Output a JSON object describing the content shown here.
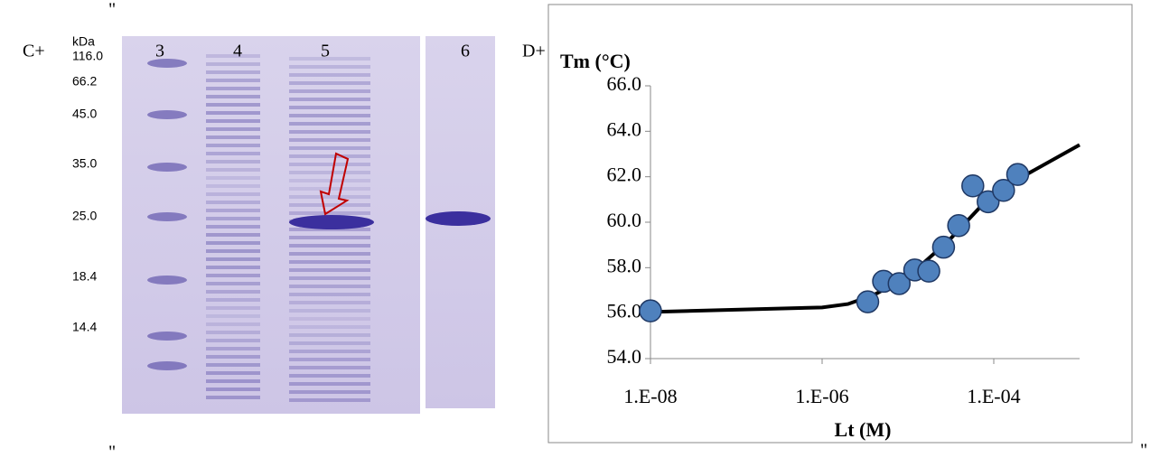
{
  "stray_marks": [
    "\"",
    "\"",
    "\""
  ],
  "gel": {
    "panel_label": "C+",
    "unit_label": "kDa",
    "lanes": [
      "3",
      "4",
      "5",
      "6"
    ],
    "markers": [
      "116.0",
      "66.2",
      "45.0",
      "35.0",
      "25.0",
      "18.4",
      "14.4"
    ]
  },
  "chart_data": {
    "type": "scatter",
    "panel_label": "D+",
    "y_label": "Tm (°C)",
    "x_label": "Lt (M)",
    "x": [
      1e-08,
      3.4e-06,
      5.2e-06,
      7.9e-06,
      1.2e-05,
      1.75e-05,
      2.6e-05,
      3.9e-05,
      5.7e-05,
      8.6e-05,
      0.00013,
      0.00019
    ],
    "values": [
      56.1,
      56.5,
      57.4,
      57.3,
      57.9,
      57.85,
      58.9,
      59.85,
      61.6,
      60.9,
      61.4,
      62.1
    ],
    "color": "#4f81bd",
    "fit": {
      "x": [
        1e-08,
        1e-06,
        2e-06,
        4e-06,
        1e-05,
        3e-05,
        0.0001,
        0.001
      ],
      "values": [
        56.05,
        56.25,
        56.4,
        56.8,
        57.6,
        59.2,
        61.3,
        63.4
      ],
      "color": "#000000"
    },
    "xscale": "log",
    "xlim": [
      1e-08,
      0.001
    ],
    "ylim": [
      54,
      66
    ],
    "xticks": [
      {
        "value": 1e-08,
        "label": "1.E-08"
      },
      {
        "value": 1e-06,
        "label": "1.E-06"
      },
      {
        "value": 0.0001,
        "label": "1.E-04"
      }
    ],
    "yticks": [
      {
        "value": 54,
        "label": "54.0"
      },
      {
        "value": 56,
        "label": "56.0"
      },
      {
        "value": 58,
        "label": "58.0"
      },
      {
        "value": 60,
        "label": "60.0"
      },
      {
        "value": 62,
        "label": "62.0"
      },
      {
        "value": 64,
        "label": "64.0"
      },
      {
        "value": 66,
        "label": "66.0"
      }
    ]
  }
}
